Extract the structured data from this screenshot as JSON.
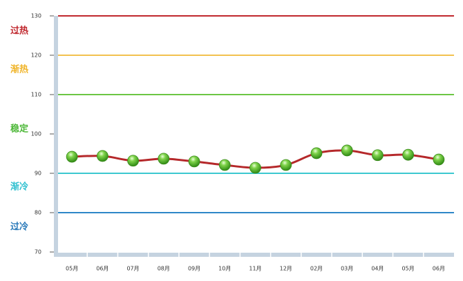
{
  "chart_data": {
    "type": "line",
    "categories": [
      "05月",
      "06月",
      "07月",
      "08月",
      "09月",
      "10月",
      "11月",
      "12月",
      "02月",
      "03月",
      "04月",
      "05月",
      "06月"
    ],
    "series": [
      {
        "color": "#b5282a",
        "values": [
          94.2,
          94.4,
          93.2,
          93.7,
          93.0,
          92.1,
          91.4,
          92.1,
          95.1,
          95.8,
          94.6,
          94.7,
          93.5
        ]
      }
    ],
    "ylim": [
      70,
      130
    ],
    "yticks": [
      70,
      80,
      90,
      100,
      110,
      120,
      130
    ],
    "reference_lines": [
      {
        "value": 130,
        "color": "#c0272d"
      },
      {
        "value": 120,
        "color": "#f2c14e"
      },
      {
        "value": 110,
        "color": "#6cc644"
      },
      {
        "value": 90,
        "color": "#3cc8d0"
      },
      {
        "value": 80,
        "color": "#2e86c8"
      }
    ],
    "zones": [
      {
        "label": "过热",
        "color": "#c0272d"
      },
      {
        "label": "渐热",
        "color": "#f0b429"
      },
      {
        "label": "稳定",
        "color": "#4fb83a"
      },
      {
        "label": "渐冷",
        "color": "#2fc0d0"
      },
      {
        "label": "过冷",
        "color": "#2677b8"
      }
    ]
  }
}
